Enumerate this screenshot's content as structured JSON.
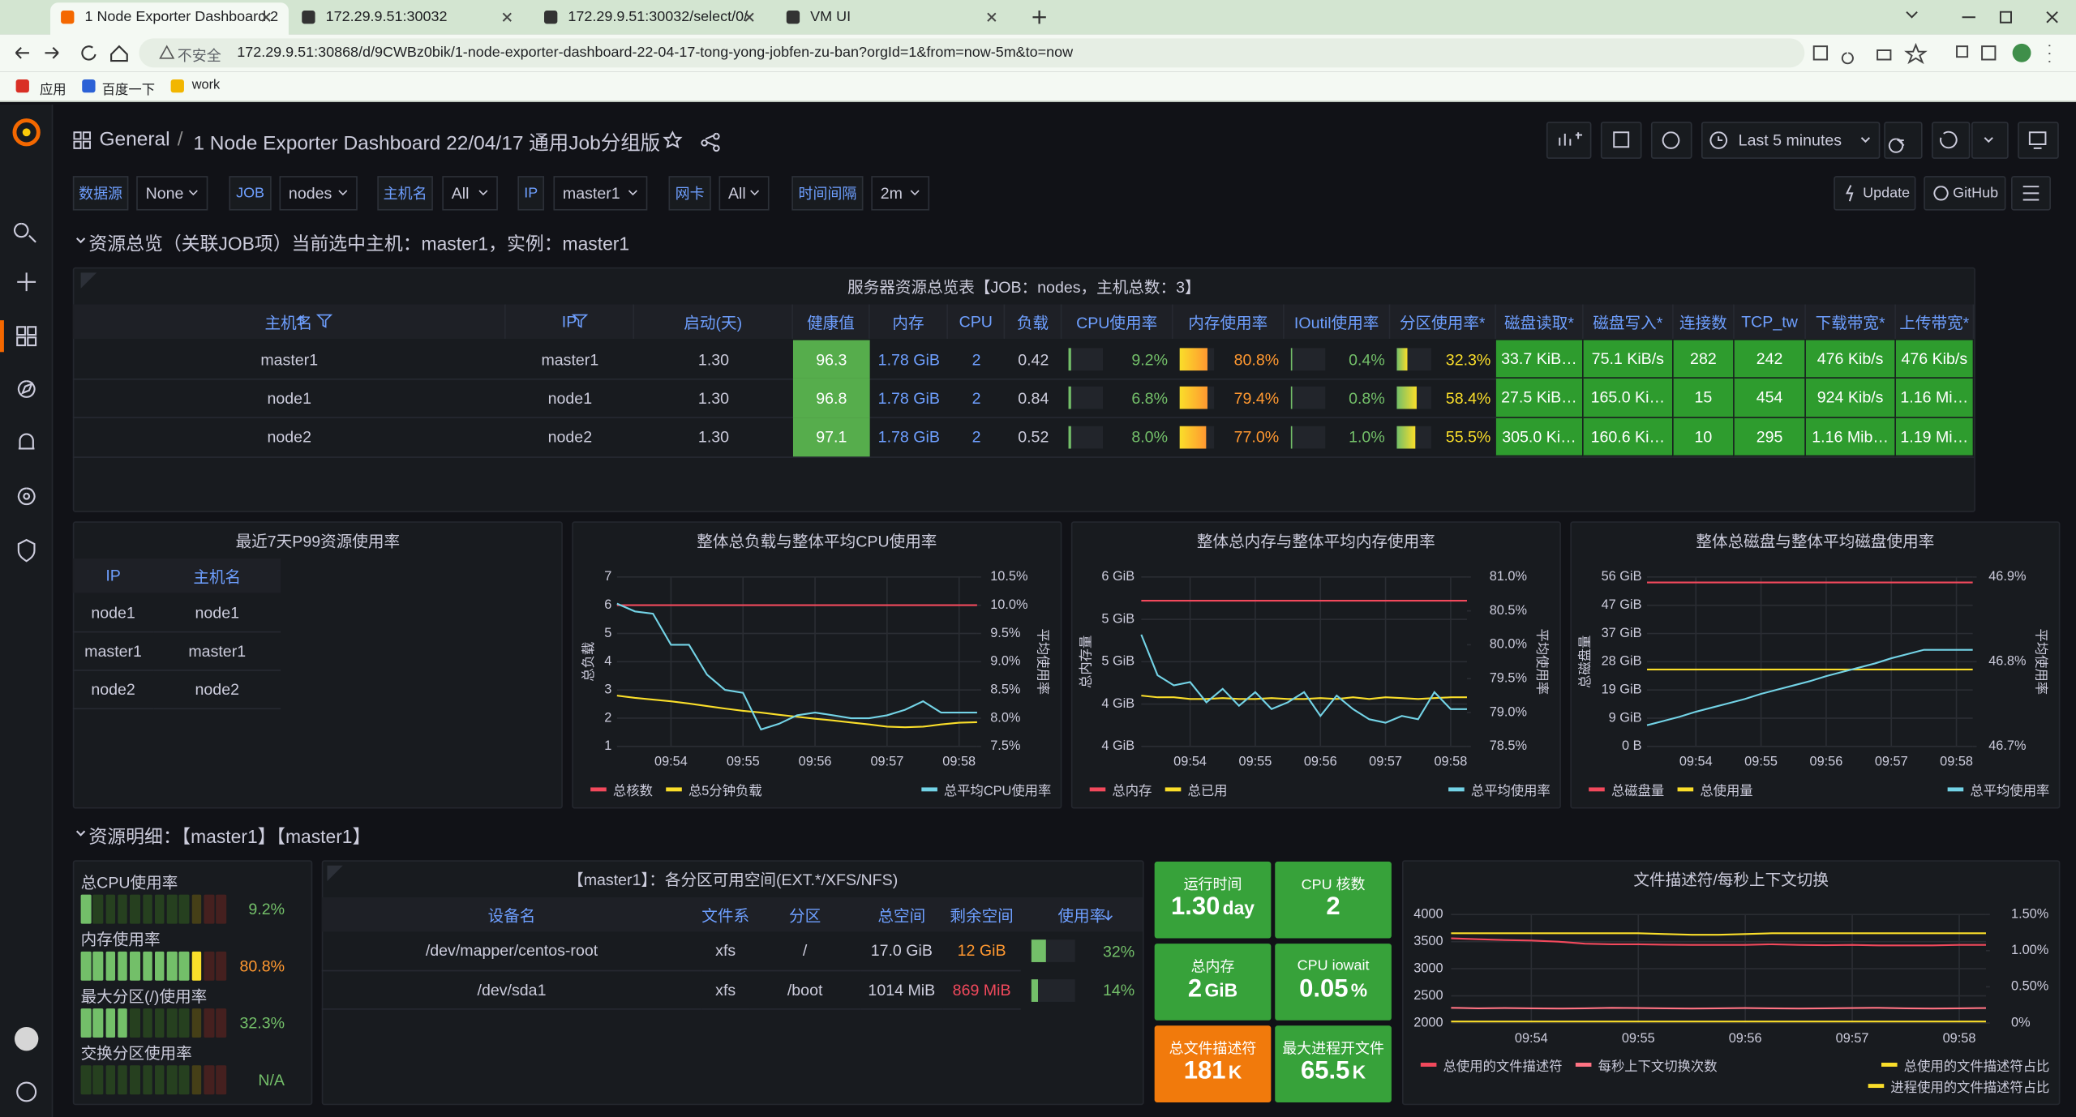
{
  "browser": {
    "tabs": [
      "1 Node Exporter Dashboard 2",
      "172.29.9.51:30032",
      "172.29.9.51:30032/select/0/",
      "VM UI"
    ],
    "insecure": "不安全",
    "url": "172.29.9.51:30868/d/9CWBz0bik/1-node-exporter-dashboard-22-04-17-tong-yong-jobfen-zu-ban?orgId=1&from=now-5m&to=now",
    "bookmarks": [
      "应用",
      "百度一下",
      "work"
    ]
  },
  "header": {
    "root": "General",
    "separator": "/",
    "title": "1 Node Exporter Dashboard 22/04/17 通用Job分组版",
    "time_range": "Last 5 minutes",
    "update": "Update",
    "github": "GitHub"
  },
  "variables": [
    {
      "label": "数据源",
      "value": "None"
    },
    {
      "label": "JOB",
      "value": "nodes"
    },
    {
      "label": "主机名",
      "value": "All"
    },
    {
      "label": "IP",
      "value": "master1"
    },
    {
      "label": "网卡",
      "value": "All"
    },
    {
      "label": "时间间隔",
      "value": "2m"
    }
  ],
  "rows": [
    "资源总览（关联JOB项）当前选中主机：master1，实例：master1",
    "资源明细：【master1】【master1】"
  ],
  "overview": {
    "title": "服务器资源总览表【JOB：nodes，主机总数：3】",
    "columns": [
      "主机名",
      "IP",
      "启动(天)",
      "健康值",
      "内存",
      "CPU",
      "负载",
      "CPU使用率",
      "内存使用率",
      "IOutil使用率",
      "分区使用率*",
      "磁盘读取*",
      "磁盘写入*",
      "连接数",
      "TCP_tw",
      "下载带宽*",
      "上传带宽*"
    ],
    "rows": [
      [
        "master1",
        "master1",
        "1.30",
        "96.3",
        "1.78 GiB",
        "2",
        "0.42",
        "9.2%",
        "80.8%",
        "0.4%",
        "32.3%",
        "33.7 KiB…",
        "75.1 KiB/s",
        "282",
        "242",
        "476 Kib/s",
        "476 Kib/s"
      ],
      [
        "node1",
        "node1",
        "1.30",
        "96.8",
        "1.78 GiB",
        "2",
        "0.84",
        "6.8%",
        "79.4%",
        "0.8%",
        "58.4%",
        "27.5 KiB…",
        "165.0 Ki…",
        "15",
        "454",
        "924 Kib/s",
        "1.16 Mi…"
      ],
      [
        "node2",
        "node2",
        "1.30",
        "97.1",
        "1.78 GiB",
        "2",
        "0.52",
        "8.0%",
        "77.0%",
        "1.0%",
        "55.5%",
        "305.0 Ki…",
        "160.6 Ki…",
        "10",
        "295",
        "1.16 Mib…",
        "1.19 Mi…"
      ]
    ]
  },
  "p99": {
    "title": "最近7天P99资源使用率",
    "columns": [
      "IP",
      "主机名"
    ],
    "rows": [
      [
        "node1",
        "node1"
      ],
      [
        "master1",
        "master1"
      ],
      [
        "node2",
        "node2"
      ]
    ]
  },
  "gauges": [
    {
      "label": "总CPU使用率",
      "value": "9.2%"
    },
    {
      "label": "内存使用率",
      "value": "80.8%"
    },
    {
      "label": "最大分区(/)使用率",
      "value": "32.3%"
    },
    {
      "label": "交换分区使用率",
      "value": "N/A"
    }
  ],
  "partitions": {
    "title": "【master1】：各分区可用空间(EXT.*/XFS/NFS)",
    "columns": [
      "设备名",
      "文件系",
      "分区",
      "总空间",
      "剩余空间",
      "使用率"
    ],
    "rows": [
      [
        "/dev/mapper/centos-root",
        "xfs",
        "/",
        "17.0 GiB",
        "12 GiB",
        "32%"
      ],
      [
        "/dev/sda1",
        "xfs",
        "/boot",
        "1014 MiB",
        "869 MiB",
        "14%"
      ]
    ]
  },
  "stats": [
    {
      "title": "运行时间",
      "value": "1.30",
      "unit": "day",
      "color": "#37a23a"
    },
    {
      "title": "CPU 核数",
      "value": "2",
      "unit": "",
      "color": "#37a23a"
    },
    {
      "title": "总内存",
      "value": "2",
      "unit": "GiB",
      "color": "#37a23a"
    },
    {
      "title": "CPU iowait",
      "value": "0.05",
      "unit": "%",
      "color": "#37a23a"
    },
    {
      "title": "总文件描述符",
      "value": "181",
      "unit": "K",
      "color": "#f17a0c"
    },
    {
      "title": "最大进程开文件",
      "value": "65.5",
      "unit": "K",
      "color": "#37a23a"
    }
  ],
  "charts": [
    {
      "type": "line",
      "title": "整体总负载与整体平均CPU使用率",
      "y_label": "总负载",
      "y2_label": "平均使用率",
      "categories": [
        null,
        null,
        null,
        "09:54",
        null,
        null,
        null,
        "09:55",
        null,
        null,
        null,
        "09:56",
        null,
        null,
        null,
        "09:57",
        null,
        null,
        null,
        "09:58",
        null
      ],
      "ylim": [
        1,
        7
      ],
      "yticks": [
        1,
        2,
        3,
        4,
        5,
        6,
        7
      ],
      "y2lim": [
        7.5,
        10.5
      ],
      "y2ticks": [
        {
          "value": 7.5,
          "label": "7.5%"
        },
        {
          "value": 8,
          "label": "8.0%"
        },
        {
          "value": 8.5,
          "label": "8.5%"
        },
        {
          "value": 9,
          "label": "9.0%"
        },
        {
          "value": 9.5,
          "label": "9.5%"
        },
        {
          "value": 10,
          "label": "10.0%"
        },
        {
          "value": 10.5,
          "label": "10.5%"
        }
      ],
      "series": [
        {
          "name": "总核数",
          "color": "#f2495c",
          "axis": "y",
          "values": [
            6,
            6,
            6,
            6,
            6,
            6,
            6,
            6,
            6,
            6,
            6,
            6,
            6,
            6,
            6,
            6,
            6,
            6,
            6,
            6,
            6
          ]
        },
        {
          "name": "总5分钟负载",
          "color": "#fade2a",
          "axis": "y",
          "values": [
            2.8,
            2.72,
            2.66,
            2.6,
            2.52,
            2.43,
            2.34,
            2.26,
            2.2,
            2.12,
            2.05,
            1.98,
            1.92,
            1.85,
            1.78,
            1.7,
            1.68,
            1.7,
            1.78,
            1.84,
            1.86
          ]
        },
        {
          "name": "总平均CPU使用率",
          "color": "#73d3e6",
          "axis": "y2",
          "values": [
            10.03,
            9.89,
            9.85,
            9.3,
            9.3,
            8.77,
            8.5,
            8.45,
            7.8,
            7.9,
            8.05,
            8.1,
            8.05,
            8.0,
            8.0,
            8.05,
            8.15,
            8.3,
            8.1,
            8.1,
            8.1
          ]
        }
      ]
    },
    {
      "type": "line",
      "title": "整体总内存与整体平均内存使用率",
      "y_label": "总内存量",
      "y2_label": "平均使用率",
      "categories": [
        null,
        null,
        null,
        "09:54",
        null,
        null,
        null,
        "09:55",
        null,
        null,
        null,
        "09:56",
        null,
        null,
        null,
        "09:57",
        null,
        null,
        null,
        "09:58",
        null
      ],
      "ylim": [
        4,
        6
      ],
      "yticks": [
        {
          "value": 4,
          "label": "4 GiB"
        },
        {
          "value": 4.5,
          "label": "4 GiB"
        },
        {
          "value": 5,
          "label": "5 GiB"
        },
        {
          "value": 5.5,
          "label": "5 GiB"
        },
        {
          "value": 6,
          "label": "6 GiB"
        }
      ],
      "y2lim": [
        78.5,
        81
      ],
      "y2ticks": [
        {
          "value": 78.5,
          "label": "78.5%"
        },
        {
          "value": 79,
          "label": "79.0%"
        },
        {
          "value": 79.5,
          "label": "79.5%"
        },
        {
          "value": 80,
          "label": "80.0%"
        },
        {
          "value": 80.5,
          "label": "80.5%"
        },
        {
          "value": 81,
          "label": "81.0%"
        }
      ],
      "series": [
        {
          "name": "总内存",
          "color": "#f2495c",
          "axis": "y",
          "values": [
            5.72,
            5.72,
            5.72,
            5.72,
            5.72,
            5.72,
            5.72,
            5.72,
            5.72,
            5.72,
            5.72,
            5.72,
            5.72,
            5.72,
            5.72,
            5.72,
            5.72,
            5.72,
            5.72,
            5.72,
            5.72
          ]
        },
        {
          "name": "总已用",
          "color": "#fade2a",
          "axis": "y",
          "values": [
            4.6,
            4.58,
            4.58,
            4.56,
            4.56,
            4.57,
            4.56,
            4.56,
            4.57,
            4.56,
            4.56,
            4.57,
            4.56,
            4.58,
            4.56,
            4.58,
            4.57,
            4.56,
            4.57,
            4.58,
            4.58
          ]
        },
        {
          "name": "总平均使用率",
          "color": "#73d3e6",
          "axis": "y2",
          "values": [
            80.15,
            79.55,
            79.4,
            79.45,
            79.15,
            79.35,
            79.1,
            79.3,
            79.05,
            79.15,
            79.3,
            78.95,
            79.25,
            79.05,
            78.9,
            78.85,
            78.95,
            78.9,
            79.3,
            79.05,
            79.05
          ]
        }
      ]
    },
    {
      "type": "line",
      "title": "整体总磁盘与整体平均磁盘使用率",
      "y_label": "总磁盘量",
      "y2_label": "平均使用率",
      "categories": [
        null,
        null,
        null,
        "09:54",
        null,
        null,
        null,
        "09:55",
        null,
        null,
        null,
        "09:56",
        null,
        null,
        null,
        "09:57",
        null,
        null,
        null,
        "09:58",
        null
      ],
      "ylim": [
        0,
        56
      ],
      "yticks": [
        {
          "value": 0,
          "label": "0 B"
        },
        {
          "value": 9.33,
          "label": "9 GiB"
        },
        {
          "value": 18.67,
          "label": "19 GiB"
        },
        {
          "value": 28,
          "label": "28 GiB"
        },
        {
          "value": 37.33,
          "label": "37 GiB"
        },
        {
          "value": 46.67,
          "label": "47 GiB"
        },
        {
          "value": 56,
          "label": "56 GiB"
        }
      ],
      "y2lim": [
        46.7,
        46.9
      ],
      "y2ticks": [
        {
          "value": 46.7,
          "label": "46.7%"
        },
        {
          "value": 46.8,
          "label": "46.8%"
        },
        {
          "value": 46.9,
          "label": "46.9%"
        }
      ],
      "series": [
        {
          "name": "总磁盘量",
          "color": "#f2495c",
          "axis": "y",
          "values": [
            54.2,
            54.2,
            54.2,
            54.2,
            54.2,
            54.2,
            54.2,
            54.2,
            54.2,
            54.2,
            54.2,
            54.2,
            54.2,
            54.2,
            54.2,
            54.2,
            54.2,
            54.2,
            54.2,
            54.2,
            54.2
          ]
        },
        {
          "name": "总使用量",
          "color": "#fade2a",
          "axis": "y",
          "values": [
            25.4,
            25.4,
            25.4,
            25.4,
            25.4,
            25.4,
            25.4,
            25.4,
            25.4,
            25.4,
            25.4,
            25.4,
            25.4,
            25.4,
            25.4,
            25.4,
            25.4,
            25.4,
            25.4,
            25.4,
            25.4
          ]
        },
        {
          "name": "总平均使用率",
          "color": "#73d3e6",
          "axis": "y2",
          "values": [
            46.725,
            46.73,
            46.735,
            46.741,
            46.746,
            46.751,
            46.756,
            46.762,
            46.767,
            46.772,
            46.777,
            46.783,
            46.788,
            46.793,
            46.798,
            46.804,
            46.809,
            46.814,
            46.814,
            46.814,
            46.814
          ]
        }
      ]
    },
    {
      "type": "line",
      "title": "文件描述符/每秒上下文切换",
      "categories": [
        null,
        null,
        null,
        "09:54",
        null,
        null,
        null,
        "09:55",
        null,
        null,
        null,
        "09:56",
        null,
        null,
        null,
        "09:57",
        null,
        null,
        null,
        "09:58",
        null
      ],
      "ylim": [
        2000,
        4000
      ],
      "yticks": [
        2000,
        2500,
        3000,
        3500,
        4000
      ],
      "y2lim": [
        0,
        1.5
      ],
      "y2ticks": [
        {
          "value": 0,
          "label": "0%"
        },
        {
          "value": 0.5,
          "label": "0.50%"
        },
        {
          "value": 1,
          "label": "1.00%"
        },
        {
          "value": 1.5,
          "label": "1.50%"
        }
      ],
      "series": [
        {
          "name": "总使用的文件描述符",
          "color": "#f2495c",
          "axis": "y",
          "values": [
            3560,
            3545,
            3530,
            3520,
            3500,
            3460,
            3450,
            3450,
            3445,
            3440,
            3440,
            3440,
            3450,
            3440,
            3435,
            3440,
            3430,
            3430,
            3430,
            3440,
            3440
          ]
        },
        {
          "name": "每秒上下文切换次数",
          "color": "#ff7383",
          "axis": "y",
          "values": [
            2280,
            2270,
            2275,
            2270,
            2265,
            2270,
            2280,
            2275,
            2270,
            2265,
            2270,
            2275,
            2270,
            2265,
            2270,
            2275,
            2280,
            2270,
            2265,
            2270,
            2275
          ]
        },
        {
          "name": "总使用的文件描述符占比",
          "color": "#fade2a",
          "axis": "y2",
          "values": [
            1.24,
            1.24,
            1.24,
            1.24,
            1.24,
            1.24,
            1.24,
            1.24,
            1.23,
            1.22,
            1.22,
            1.23,
            1.24,
            1.24,
            1.24,
            1.24,
            1.24,
            1.24,
            1.24,
            1.24,
            1.24
          ]
        },
        {
          "name": "进程使用的文件描述符占比",
          "color": "#fade2a",
          "axis": "y2",
          "values": [
            0.02,
            0.02,
            0.02,
            0.02,
            0.02,
            0.02,
            0.02,
            0.02,
            0.02,
            0.02,
            0.02,
            0.02,
            0.02,
            0.02,
            0.02,
            0.02,
            0.02,
            0.02,
            0.02,
            0.02,
            0.02
          ]
        }
      ]
    }
  ]
}
